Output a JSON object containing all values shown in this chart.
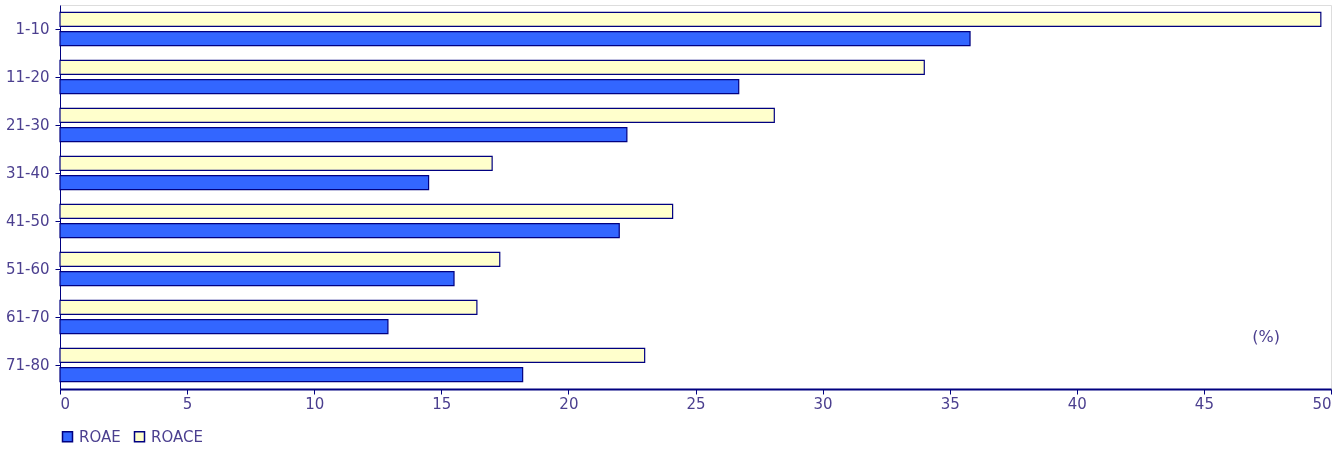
{
  "chart_data": {
    "type": "bar",
    "orientation": "horizontal",
    "categories": [
      "1-10",
      "11-20",
      "21-30",
      "31-40",
      "41-50",
      "51-60",
      "61-70",
      "71-80"
    ],
    "series": [
      {
        "name": "ROACE",
        "color": "#ffffcc",
        "values": [
          49.6,
          34.0,
          28.1,
          17.0,
          24.1,
          17.3,
          16.4,
          23.0
        ]
      },
      {
        "name": "ROAE",
        "color": "#3366ff",
        "values": [
          35.8,
          26.7,
          22.3,
          14.5,
          22.0,
          15.5,
          12.9,
          18.2
        ]
      }
    ],
    "xlim": [
      0,
      50
    ],
    "xticks": [
      0,
      5,
      10,
      15,
      20,
      25,
      30,
      35,
      40,
      45,
      50
    ],
    "grid": false,
    "legend": "bottom",
    "annotations": [
      "(%)"
    ]
  }
}
